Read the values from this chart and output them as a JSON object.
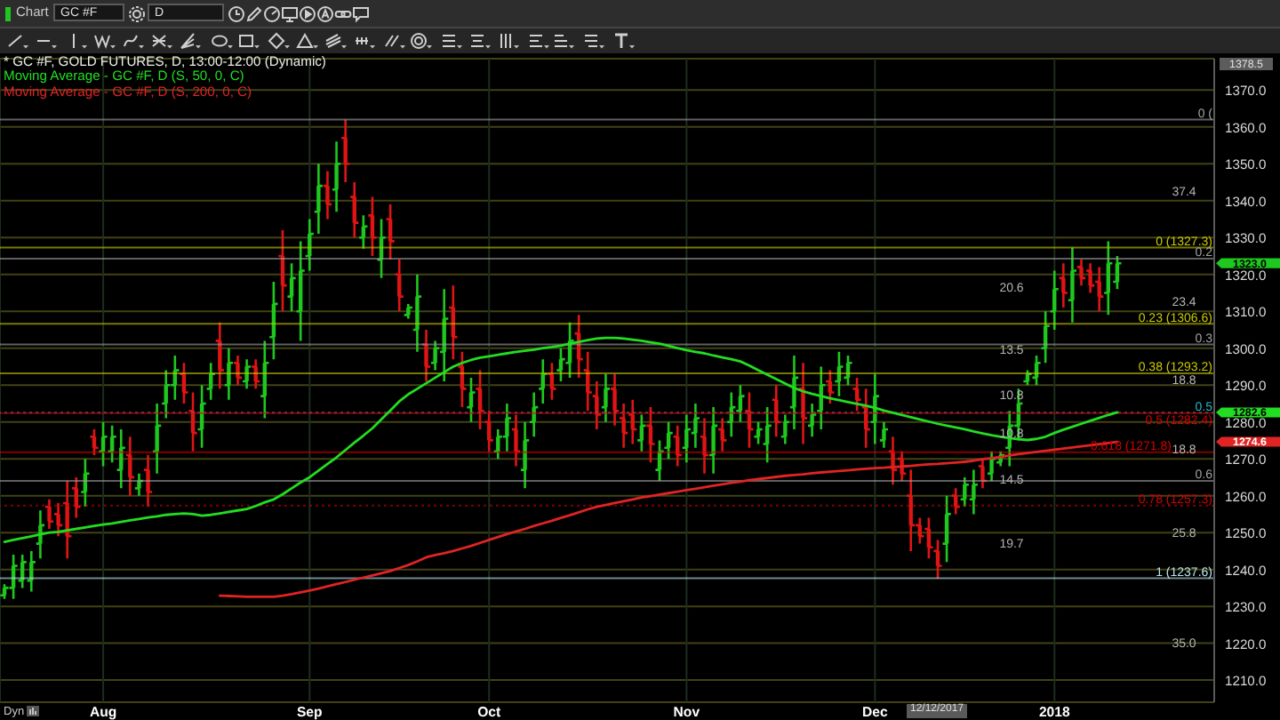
{
  "chart_data": {
    "type": "candlestick",
    "title": "* GC #F, GOLD FUTURES, D, 13:00-12:00 (Dynamic)",
    "categories": [
      null,
      null,
      null,
      null,
      null,
      null,
      null,
      null,
      null,
      null,
      null,
      "Aug",
      null,
      null,
      null,
      null,
      null,
      null,
      null,
      null,
      null,
      null,
      null,
      null,
      null,
      null,
      null,
      null,
      null,
      null,
      null,
      null,
      null,
      null,
      "Sep",
      null,
      null,
      null,
      null,
      null,
      null,
      null,
      null,
      null,
      null,
      null,
      null,
      null,
      null,
      null,
      null,
      null,
      null,
      null,
      "Oct",
      null,
      null,
      null,
      null,
      null,
      null,
      null,
      null,
      null,
      null,
      null,
      null,
      null,
      null,
      null,
      null,
      null,
      null,
      null,
      null,
      null,
      "Nov",
      null,
      null,
      null,
      null,
      null,
      null,
      null,
      null,
      null,
      null,
      null,
      null,
      null,
      null,
      null,
      null,
      null,
      null,
      null,
      null,
      "Dec",
      null,
      null,
      null,
      null,
      null,
      null,
      null,
      null,
      null,
      null,
      null,
      null,
      null,
      null,
      null,
      null,
      null,
      null,
      null,
      "2018",
      null,
      null,
      null,
      null,
      null,
      null,
      null
    ],
    "ohlc": [
      [
        1233,
        1236,
        1232,
        1235
      ],
      [
        1235,
        1244,
        1232,
        1241
      ],
      [
        1237,
        1244,
        1235,
        1242
      ],
      [
        1237,
        1245,
        1234,
        1242
      ],
      [
        1247,
        1256,
        1243,
        1252
      ],
      [
        1257,
        1259,
        1251,
        1253
      ],
      [
        1255,
        1258,
        1249,
        1252
      ],
      [
        1258,
        1264,
        1243,
        1249
      ],
      [
        1262,
        1265,
        1254,
        1257
      ],
      [
        1261,
        1270,
        1257,
        1266
      ],
      [
        1276,
        1278,
        1271,
        1273
      ],
      [
        1272,
        1280,
        1268,
        1276
      ],
      [
        1272,
        1279,
        1269,
        1276
      ],
      [
        1267,
        1278,
        1262,
        1273
      ],
      [
        1271,
        1276,
        1260,
        1265
      ],
      [
        1262,
        1266,
        1260,
        1264
      ],
      [
        1267,
        1271,
        1257,
        1261
      ],
      [
        1272,
        1285,
        1266,
        1279
      ],
      [
        1285,
        1294,
        1281,
        1290
      ],
      [
        1290,
        1298,
        1286,
        1294
      ],
      [
        1293,
        1296,
        1285,
        1288
      ],
      [
        1283,
        1288,
        1272,
        1277
      ],
      [
        1278,
        1290,
        1273,
        1285
      ],
      [
        1289,
        1296,
        1286,
        1293
      ],
      [
        1302,
        1307,
        1289,
        1294
      ],
      [
        1290,
        1300,
        1286,
        1296
      ],
      [
        1296,
        1298,
        1290,
        1292
      ],
      [
        1291,
        1297,
        1289,
        1295
      ],
      [
        1295,
        1297,
        1289,
        1291
      ],
      [
        1287,
        1302,
        1281,
        1296
      ],
      [
        1303,
        1318,
        1297,
        1312
      ],
      [
        1325,
        1332,
        1310,
        1317
      ],
      [
        1314,
        1323,
        1310,
        1319
      ],
      [
        1310,
        1329,
        1302,
        1321
      ],
      [
        1325,
        1335,
        1321,
        1331
      ],
      [
        1337,
        1350,
        1331,
        1344
      ],
      [
        1344,
        1348,
        1335,
        1339
      ],
      [
        1343,
        1356,
        1337,
        1350
      ],
      [
        1357,
        1362,
        1345,
        1350
      ],
      [
        1341,
        1345,
        1330,
        1334
      ],
      [
        1330,
        1336,
        1327,
        1333
      ],
      [
        1336,
        1341,
        1325,
        1330
      ],
      [
        1324,
        1335,
        1319,
        1330
      ],
      [
        1335,
        1339,
        1324,
        1329
      ],
      [
        1320,
        1324,
        1310,
        1314
      ],
      [
        1309,
        1312,
        1308,
        1311
      ],
      [
        1305,
        1320,
        1299,
        1314
      ],
      [
        1301,
        1305,
        1291,
        1295
      ],
      [
        1296,
        1302,
        1294,
        1300
      ],
      [
        1299,
        1316,
        1291,
        1308
      ],
      [
        1311,
        1317,
        1297,
        1303
      ],
      [
        1295,
        1299,
        1284,
        1289
      ],
      [
        1284,
        1292,
        1280,
        1288
      ],
      [
        1289,
        1294,
        1278,
        1283
      ],
      [
        1280,
        1283,
        1272,
        1275
      ],
      [
        1272,
        1278,
        1270,
        1276
      ],
      [
        1276,
        1285,
        1272,
        1281
      ],
      [
        1278,
        1282,
        1268,
        1272
      ],
      [
        1267,
        1280,
        1262,
        1275
      ],
      [
        1280,
        1288,
        1276,
        1284
      ],
      [
        1289,
        1297,
        1285,
        1293
      ],
      [
        1293,
        1296,
        1286,
        1289
      ],
      [
        1294,
        1300,
        1291,
        1297
      ],
      [
        1296,
        1307,
        1292,
        1302
      ],
      [
        1304,
        1309,
        1292,
        1297
      ],
      [
        1294,
        1299,
        1283,
        1288
      ],
      [
        1287,
        1291,
        1278,
        1282
      ],
      [
        1284,
        1293,
        1280,
        1289
      ],
      [
        1289,
        1293,
        1279,
        1283
      ],
      [
        1281,
        1285,
        1273,
        1277
      ],
      [
        1282,
        1286,
        1274,
        1278
      ],
      [
        1275,
        1282,
        1272,
        1279
      ],
      [
        1279,
        1284,
        1269,
        1274
      ],
      [
        1267,
        1275,
        1264,
        1272
      ],
      [
        1273,
        1280,
        1270,
        1277
      ],
      [
        1276,
        1279,
        1268,
        1271
      ],
      [
        1273,
        1282,
        1269,
        1278
      ],
      [
        1277,
        1285,
        1273,
        1281
      ],
      [
        1276,
        1281,
        1266,
        1271
      ],
      [
        1271,
        1284,
        1266,
        1279
      ],
      [
        1278,
        1281,
        1272,
        1275
      ],
      [
        1280,
        1288,
        1276,
        1284
      ],
      [
        1283,
        1290,
        1280,
        1287
      ],
      [
        1283,
        1288,
        1273,
        1278
      ],
      [
        1276,
        1280,
        1274,
        1278
      ],
      [
        1274,
        1284,
        1269,
        1279
      ],
      [
        1286,
        1290,
        1276,
        1280
      ],
      [
        1276,
        1282,
        1274,
        1280
      ],
      [
        1284,
        1298,
        1278,
        1292
      ],
      [
        1289,
        1296,
        1274,
        1281
      ],
      [
        1279,
        1285,
        1276,
        1282
      ],
      [
        1283,
        1295,
        1278,
        1290
      ],
      [
        1291,
        1294,
        1285,
        1288
      ],
      [
        1291,
        1299,
        1287,
        1295
      ],
      [
        1292,
        1298,
        1290,
        1296
      ],
      [
        1289,
        1292,
        1283,
        1286
      ],
      [
        1284,
        1289,
        1273,
        1278
      ],
      [
        1280,
        1293,
        1274,
        1287
      ],
      [
        1275,
        1280,
        1273,
        1278
      ],
      [
        1272,
        1276,
        1263,
        1267
      ],
      [
        1270,
        1272,
        1264,
        1266
      ],
      [
        1260,
        1267,
        1245,
        1252
      ],
      [
        1252,
        1254,
        1247,
        1249
      ],
      [
        1251,
        1254,
        1243,
        1246
      ],
      [
        1245,
        1248,
        1237.6,
        1241
      ],
      [
        1247,
        1260,
        1242,
        1255
      ],
      [
        1260,
        1262,
        1255,
        1257
      ],
      [
        1259,
        1265,
        1257,
        1263
      ],
      [
        1259,
        1267,
        1255,
        1263
      ],
      [
        1268,
        1270,
        1262,
        1264
      ],
      [
        1266,
        1272,
        1264,
        1270
      ],
      [
        1269,
        1272,
        1268,
        1271
      ],
      [
        1273,
        1283,
        1268,
        1279
      ],
      [
        1279,
        1289,
        1275,
        1285
      ],
      [
        1291,
        1294,
        1290,
        1293
      ],
      [
        1292,
        1298,
        1290,
        1296
      ],
      [
        1300,
        1310,
        1296,
        1306
      ],
      [
        1310,
        1321,
        1305,
        1316
      ],
      [
        1319,
        1323,
        1311,
        1315
      ],
      [
        1313,
        1327.3,
        1307,
        1321
      ],
      [
        1322,
        1324,
        1317,
        1319
      ],
      [
        1321,
        1323,
        1315,
        1317
      ],
      [
        1318,
        1322,
        1310,
        1314
      ],
      [
        1315,
        1329,
        1309,
        1323
      ],
      [
        1318,
        1325,
        1316,
        1323
      ]
    ],
    "colors": [
      "#1ec81e",
      "#1ec81e",
      "#1ec81e",
      "#1ec81e",
      "#1ec81e",
      "#e01414",
      "#e01414",
      "#e01414",
      "#e01414",
      "#1ec81e",
      "#e01414",
      "#1ec81e",
      "#1ec81e",
      "#1ec81e",
      "#e01414",
      "#1ec81e",
      "#e01414",
      "#1ec81e",
      "#1ec81e",
      "#1ec81e",
      "#e01414",
      "#e01414",
      "#1ec81e",
      "#1ec81e",
      "#e01414",
      "#1ec81e",
      "#e01414",
      "#1ec81e",
      "#e01414",
      "#1ec81e",
      "#1ec81e",
      "#e01414",
      "#1ec81e",
      "#1ec81e",
      "#1ec81e",
      "#1ec81e",
      "#e01414",
      "#1ec81e",
      "#e01414",
      "#e01414",
      "#1ec81e",
      "#e01414",
      "#1ec81e",
      "#e01414",
      "#e01414",
      "#1ec81e",
      "#1ec81e",
      "#e01414",
      "#1ec81e",
      "#1ec81e",
      "#e01414",
      "#e01414",
      "#1ec81e",
      "#e01414",
      "#e01414",
      "#1ec81e",
      "#1ec81e",
      "#e01414",
      "#1ec81e",
      "#1ec81e",
      "#1ec81e",
      "#e01414",
      "#1ec81e",
      "#1ec81e",
      "#e01414",
      "#e01414",
      "#e01414",
      "#1ec81e",
      "#e01414",
      "#e01414",
      "#e01414",
      "#1ec81e",
      "#e01414",
      "#1ec81e",
      "#1ec81e",
      "#e01414",
      "#1ec81e",
      "#1ec81e",
      "#e01414",
      "#1ec81e",
      "#e01414",
      "#1ec81e",
      "#1ec81e",
      "#e01414",
      "#1ec81e",
      "#1ec81e",
      "#e01414",
      "#1ec81e",
      "#1ec81e",
      "#e01414",
      "#1ec81e",
      "#1ec81e",
      "#e01414",
      "#1ec81e",
      "#1ec81e",
      "#e01414",
      "#e01414",
      "#1ec81e",
      "#1ec81e",
      "#e01414",
      "#e01414",
      "#e01414",
      "#e01414",
      "#e01414",
      "#e01414",
      "#1ec81e",
      "#e01414",
      "#1ec81e",
      "#1ec81e",
      "#e01414",
      "#1ec81e",
      "#1ec81e",
      "#1ec81e",
      "#1ec81e",
      "#1ec81e",
      "#1ec81e",
      "#1ec81e",
      "#1ec81e",
      "#e01414",
      "#1ec81e",
      "#e01414",
      "#e01414",
      "#e01414",
      "#1ec81e",
      "#1ec81e"
    ],
    "series": [
      {
        "type": "line",
        "name": "Moving Average - GC #F, D (S, 50, 0, C)",
        "color": "#22dd22",
        "values": [
          1247.5,
          1248,
          1248.5,
          1249,
          1249.5,
          1250,
          1250.2,
          1250.6,
          1251,
          1251.4,
          1251.8,
          1252.2,
          1252.5,
          1252.9,
          1253.3,
          1253.7,
          1254.1,
          1254.4,
          1254.8,
          1255,
          1255.2,
          1255,
          1254.6,
          1254.8,
          1255.2,
          1255.6,
          1256,
          1256.4,
          1257.2,
          1258.2,
          1259,
          1260.4,
          1262,
          1263.6,
          1265,
          1266.8,
          1268.6,
          1270.4,
          1272.4,
          1274.4,
          1276.3,
          1278.3,
          1280.7,
          1283.1,
          1285.6,
          1287.5,
          1289,
          1290.5,
          1292,
          1293.5,
          1295,
          1296,
          1296.8,
          1297.4,
          1297.8,
          1298.2,
          1298.6,
          1299,
          1299.3,
          1299.6,
          1300,
          1300.3,
          1300.7,
          1301.2,
          1301.7,
          1302.2,
          1302.6,
          1302.8,
          1302.8,
          1302.6,
          1302.3,
          1302,
          1301.6,
          1301.2,
          1300.6,
          1300,
          1299.5,
          1299,
          1298.6,
          1298,
          1297.5,
          1297,
          1296.4,
          1295.3,
          1294,
          1292.8,
          1291.6,
          1290.4,
          1289.2,
          1288.3,
          1287.6,
          1287,
          1286.4,
          1285.9,
          1285.4,
          1284.9,
          1284.4,
          1283.8,
          1283.1,
          1282.5,
          1281.9,
          1281.3,
          1280.7,
          1280.1,
          1279.5,
          1279,
          1278.5,
          1278,
          1277.4,
          1276.9,
          1276.4,
          1276,
          1275.6,
          1275.3,
          1275.1,
          1275.4,
          1276,
          1277,
          1277.9,
          1278.7,
          1279.5,
          1280.3,
          1281.1,
          1281.9,
          1282.6
        ]
      },
      {
        "type": "line",
        "name": "Moving Average - GC #F, D (S, 200, 0, C)",
        "color": "#e02424",
        "values": [
          null,
          null,
          null,
          null,
          null,
          null,
          null,
          null,
          null,
          null,
          null,
          null,
          null,
          null,
          null,
          null,
          null,
          null,
          null,
          null,
          null,
          null,
          null,
          null,
          1232.9,
          1232.8,
          1232.7,
          1232.6,
          1232.6,
          1232.6,
          1232.6,
          1232.9,
          1233.3,
          1233.8,
          1234.3,
          1234.8,
          1235.4,
          1236,
          1236.6,
          1237.2,
          1237.8,
          1238.4,
          1239,
          1239.6,
          1240.4,
          1241.2,
          1242.2,
          1243.3,
          1243.9,
          1244.4,
          1245,
          1245.7,
          1246.4,
          1247.2,
          1248,
          1248.8,
          1249.6,
          1250.3,
          1251,
          1251.8,
          1252.5,
          1253.2,
          1254,
          1254.7,
          1255.5,
          1256.3,
          1257,
          1257.5,
          1258,
          1258.5,
          1259,
          1259.5,
          1259.9,
          1260.3,
          1260.7,
          1261.1,
          1261.5,
          1261.9,
          1262.3,
          1262.7,
          1263.1,
          1263.5,
          1263.8,
          1264.2,
          1264.5,
          1264.8,
          1265.1,
          1265.4,
          1265.6,
          1265.8,
          1266.1,
          1266.3,
          1266.5,
          1266.7,
          1266.9,
          1267.1,
          1267.3,
          1267.5,
          1267.6,
          1267.8,
          1267.9,
          1268.1,
          1268.3,
          1268.5,
          1268.6,
          1268.8,
          1269,
          1269.2,
          1269.5,
          1269.9,
          1270.2,
          1270.5,
          1270.9,
          1271.3,
          1271.6,
          1271.9,
          1272.2,
          1272.5,
          1272.8,
          1273.1,
          1273.4,
          1273.7,
          1274,
          1274.3,
          1274.6
        ]
      }
    ],
    "ylim": [
      1204,
      1378.5
    ],
    "yticks": [
      {
        "value": 1210,
        "label": "1210.0"
      },
      {
        "value": 1220,
        "label": "1220.0"
      },
      {
        "value": 1230,
        "label": "1230.0"
      },
      {
        "value": 1240,
        "label": "1240.0"
      },
      {
        "value": 1250,
        "label": "1250.0"
      },
      {
        "value": 1260,
        "label": "1260.0"
      },
      {
        "value": 1270,
        "label": "1270.0"
      },
      {
        "value": 1280,
        "label": "1280.0"
      },
      {
        "value": 1290,
        "label": "1290.0"
      },
      {
        "value": 1300,
        "label": "1300.0"
      },
      {
        "value": 1310,
        "label": "1310.0"
      },
      {
        "value": 1320,
        "label": "1320.0"
      },
      {
        "value": 1330,
        "label": "1330.0"
      },
      {
        "value": 1340,
        "label": "1340.0"
      },
      {
        "value": 1350,
        "label": "1350.0"
      },
      {
        "value": 1360,
        "label": "1360.0"
      },
      {
        "value": 1370,
        "label": "1370.0"
      },
      1378.5
    ],
    "grid": true,
    "legend": "top left",
    "ref_lines": [
      {
        "axis": "y",
        "value": 1362,
        "color": "#a0a0a0"
      },
      {
        "axis": "y",
        "value": 1324.3,
        "color": "#a0a0a0"
      },
      {
        "axis": "y",
        "value": 1301,
        "color": "#a0a0a0"
      },
      {
        "axis": "y",
        "value": 1282.5,
        "color": "#22b8c8",
        "line_style": "dotted"
      },
      {
        "axis": "y",
        "value": 1264,
        "color": "#a0a0a0"
      },
      {
        "axis": "y",
        "value": 1327.3,
        "label": "0 (1327.3)",
        "color": "#c8c800"
      },
      {
        "axis": "y",
        "value": 1306.6,
        "label": "0.23 (1306.6)",
        "color": "#c8c800"
      },
      {
        "axis": "y",
        "value": 1293.2,
        "label": "0.38 (1293.2)",
        "color": "#c8c800"
      },
      {
        "axis": "y",
        "value": 1282.4,
        "label": "0.5 (1282.4)",
        "color": "#d40000"
      },
      {
        "axis": "y",
        "value": 1271.8,
        "label": "0.618 (1271.8)",
        "color": "#d40000"
      },
      {
        "axis": "y",
        "value": 1257.3,
        "label": "0.78 (1257.3)",
        "color": "#d40000",
        "line_style": "dotted"
      },
      {
        "axis": "y",
        "value": 1237.6,
        "label": "1 (1237.6)",
        "color": "#b8e4ec"
      }
    ],
    "annotations": [
      "Chart",
      "GC #F",
      "D",
      "Dyn",
      "12/12/2017",
      "20.6",
      "13.5",
      "10.8",
      "10.8",
      "14.5",
      "19.7",
      "37.4",
      "23.4",
      "18.8",
      "18.8",
      "25.8",
      "35.0",
      "0 (",
      "0.2",
      "0.3",
      "0.5",
      "0.6",
      "1323.0",
      "1282.6",
      "1274.6"
    ]
  }
}
